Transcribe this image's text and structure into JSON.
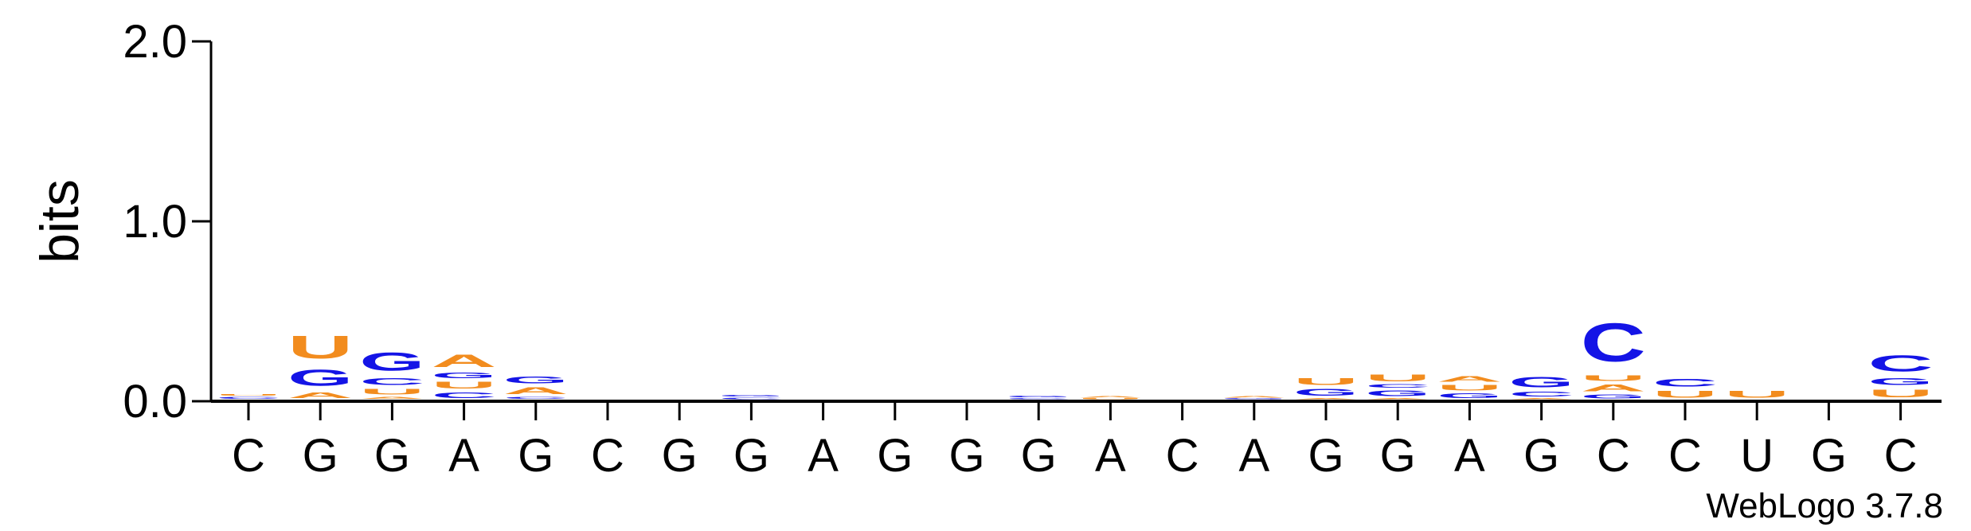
{
  "chart_data": {
    "type": "sequence-logo",
    "ylabel": "bits",
    "ylim": [
      0,
      2.0
    ],
    "yticks": [
      {
        "value": 0.0,
        "label": "0.0"
      },
      {
        "value": 1.0,
        "label": "1.0"
      },
      {
        "value": 2.0,
        "label": "2.0"
      }
    ],
    "colors": {
      "A": "#f28c1e",
      "U": "#f28c1e",
      "G": "#1414e6",
      "C": "#1414e6"
    },
    "credit": "WebLogo 3.7.8",
    "positions": [
      {
        "label": "C",
        "stack": [
          [
            "C",
            0.02
          ],
          [
            "U",
            0.015
          ]
        ]
      },
      {
        "label": "G",
        "stack": [
          [
            "A",
            0.05
          ],
          [
            "G",
            0.14
          ],
          [
            "U",
            0.2
          ]
        ]
      },
      {
        "label": "G",
        "stack": [
          [
            "A",
            0.02
          ],
          [
            "U",
            0.05
          ],
          [
            "C",
            0.06
          ],
          [
            "G",
            0.16
          ]
        ]
      },
      {
        "label": "A",
        "stack": [
          [
            "C",
            0.05
          ],
          [
            "U",
            0.06
          ],
          [
            "G",
            0.05
          ],
          [
            "A",
            0.11
          ]
        ]
      },
      {
        "label": "G",
        "stack": [
          [
            "C",
            0.02
          ],
          [
            "A",
            0.06
          ],
          [
            "G",
            0.06
          ]
        ]
      },
      {
        "label": "C",
        "stack": []
      },
      {
        "label": "G",
        "stack": []
      },
      {
        "label": "G",
        "stack": [
          [
            "C",
            0.015
          ],
          [
            "G",
            0.015
          ]
        ]
      },
      {
        "label": "A",
        "stack": []
      },
      {
        "label": "G",
        "stack": []
      },
      {
        "label": "G",
        "stack": []
      },
      {
        "label": "G",
        "stack": [
          [
            "C",
            0.01
          ],
          [
            "G",
            0.012
          ]
        ]
      },
      {
        "label": "A",
        "stack": [
          [
            "U",
            0.008
          ],
          [
            "A",
            0.012
          ]
        ]
      },
      {
        "label": "C",
        "stack": []
      },
      {
        "label": "A",
        "stack": [
          [
            "G",
            0.008
          ],
          [
            "A",
            0.012
          ]
        ]
      },
      {
        "label": "G",
        "stack": [
          [
            "A",
            0.01
          ],
          [
            "G",
            0.06
          ],
          [
            "U",
            0.06
          ]
        ]
      },
      {
        "label": "G",
        "stack": [
          [
            "A",
            0.01
          ],
          [
            "G",
            0.05
          ],
          [
            "C",
            0.03
          ],
          [
            "U",
            0.06
          ]
        ]
      },
      {
        "label": "A",
        "stack": [
          [
            "G",
            0.04
          ],
          [
            "U",
            0.05
          ],
          [
            "A",
            0.05
          ]
        ]
      },
      {
        "label": "G",
        "stack": [
          [
            "A",
            0.01
          ],
          [
            "C",
            0.04
          ],
          [
            "G",
            0.09
          ]
        ]
      },
      {
        "label": "C",
        "stack": [
          [
            "G",
            0.035
          ],
          [
            "A",
            0.06
          ],
          [
            "U",
            0.05
          ],
          [
            "C",
            0.34
          ]
        ]
      },
      {
        "label": "C",
        "stack": [
          [
            "U",
            0.06
          ],
          [
            "C",
            0.07
          ]
        ]
      },
      {
        "label": "U",
        "stack": [
          [
            "U",
            0.06
          ]
        ]
      },
      {
        "label": "G",
        "stack": []
      },
      {
        "label": "C",
        "stack": [
          [
            "U",
            0.07
          ],
          [
            "G",
            0.06
          ],
          [
            "C",
            0.14
          ]
        ]
      }
    ]
  }
}
